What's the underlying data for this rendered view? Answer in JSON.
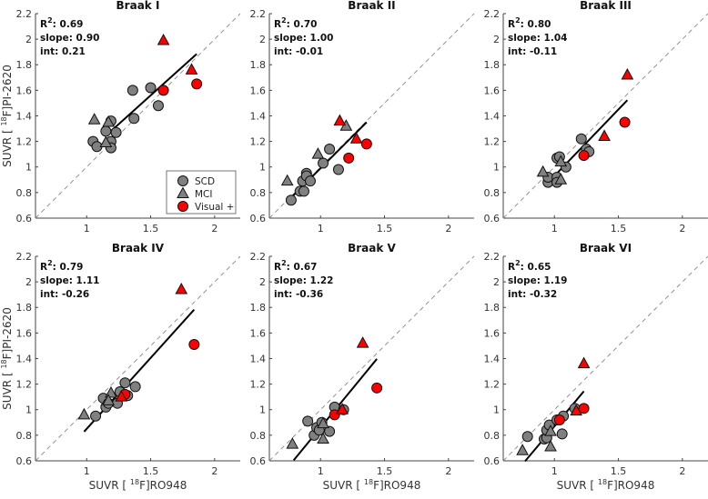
{
  "chart_data": [
    {
      "type": "scatter",
      "title": "Braak I",
      "stats": {
        "r2_label": "R",
        "r2_sup": "2",
        "r2_value": ": 0.69",
        "slope": "slope: 0.90",
        "int": "int: 0.21"
      },
      "fit": {
        "slope": 0.9,
        "intercept": 0.21,
        "x_range": [
          1.15,
          1.86
        ]
      },
      "series": [
        {
          "name": "SCD",
          "points": [
            [
              1.05,
              1.2
            ],
            [
              1.08,
              1.16
            ],
            [
              1.15,
              1.28
            ],
            [
              1.19,
              1.36
            ],
            [
              1.19,
              1.2
            ],
            [
              1.19,
              1.15
            ],
            [
              1.23,
              1.27
            ],
            [
              1.36,
              1.6
            ],
            [
              1.37,
              1.38
            ],
            [
              1.5,
              1.62
            ],
            [
              1.56,
              1.48
            ]
          ]
        },
        {
          "name": "MCI",
          "points": [
            [
              1.06,
              1.37
            ],
            [
              1.17,
              1.35
            ],
            [
              1.15,
              1.19
            ]
          ]
        },
        {
          "name": "Visual + (SCD)",
          "points": [
            [
              1.6,
              1.6
            ],
            [
              1.86,
              1.65
            ]
          ]
        },
        {
          "name": "Visual + (MCI)",
          "points": [
            [
              1.6,
              1.99
            ],
            [
              1.82,
              1.76
            ]
          ]
        }
      ]
    },
    {
      "type": "scatter",
      "title": "Braak II",
      "stats": {
        "r2_label": "R",
        "r2_sup": "2",
        "r2_value": ": 0.70",
        "slope": "slope: 1.00",
        "int": "int: -0.01"
      },
      "fit": {
        "slope": 1.0,
        "intercept": -0.01,
        "x_range": [
          0.76,
          1.36
        ]
      },
      "series": [
        {
          "name": "SCD",
          "points": [
            [
              0.77,
              0.74
            ],
            [
              0.84,
              0.81
            ],
            [
              0.86,
              0.89
            ],
            [
              0.87,
              0.81
            ],
            [
              0.89,
              0.95
            ],
            [
              0.89,
              0.93
            ],
            [
              0.92,
              0.89
            ],
            [
              1.02,
              1.03
            ],
            [
              1.07,
              1.14
            ],
            [
              1.14,
              0.98
            ]
          ]
        },
        {
          "name": "MCI",
          "points": [
            [
              0.74,
              0.89
            ],
            [
              0.98,
              1.1
            ],
            [
              1.2,
              1.32
            ]
          ]
        },
        {
          "name": "Visual + (SCD)",
          "points": [
            [
              1.22,
              1.07
            ],
            [
              1.36,
              1.18
            ]
          ]
        },
        {
          "name": "Visual + (MCI)",
          "points": [
            [
              1.15,
              1.36
            ],
            [
              1.28,
              1.22
            ]
          ]
        }
      ]
    },
    {
      "type": "scatter",
      "title": "Braak III",
      "stats": {
        "r2_label": "R",
        "r2_sup": "2",
        "r2_value": ": 0.80",
        "slope": "slope: 1.04",
        "int": "int: -0.11"
      },
      "fit": {
        "slope": 1.04,
        "intercept": -0.11,
        "x_range": [
          0.93,
          1.57
        ]
      },
      "series": [
        {
          "name": "SCD",
          "points": [
            [
              0.95,
              0.88
            ],
            [
              0.95,
              0.92
            ],
            [
              1.02,
              0.92
            ],
            [
              1.02,
              0.88
            ],
            [
              1.02,
              1.07
            ],
            [
              1.04,
              1.08
            ],
            [
              1.09,
              1.0
            ],
            [
              1.21,
              1.22
            ],
            [
              1.25,
              1.14
            ],
            [
              1.27,
              1.12
            ]
          ]
        },
        {
          "name": "MCI",
          "points": [
            [
              0.91,
              0.96
            ],
            [
              1.05,
              0.9
            ],
            [
              1.05,
              1.04
            ]
          ]
        },
        {
          "name": "Visual + (SCD)",
          "points": [
            [
              1.23,
              1.09
            ],
            [
              1.55,
              1.35
            ]
          ]
        },
        {
          "name": "Visual + (MCI)",
          "points": [
            [
              1.39,
              1.24
            ],
            [
              1.57,
              1.72
            ]
          ]
        }
      ]
    },
    {
      "type": "scatter",
      "title": "Braak IV",
      "stats": {
        "r2_label": "R",
        "r2_sup": "2",
        "r2_value": ": 0.79",
        "slope": "slope: 1.11",
        "int": "int: -0.26"
      },
      "fit": {
        "slope": 1.11,
        "intercept": -0.26,
        "x_range": [
          0.98,
          1.84
        ]
      },
      "series": [
        {
          "name": "SCD",
          "points": [
            [
              1.07,
              0.95
            ],
            [
              1.13,
              1.09
            ],
            [
              1.15,
              1.02
            ],
            [
              1.17,
              1.05
            ],
            [
              1.24,
              1.05
            ],
            [
              1.26,
              1.14
            ],
            [
              1.3,
              1.21
            ],
            [
              1.32,
              1.11
            ],
            [
              1.38,
              1.18
            ]
          ]
        },
        {
          "name": "MCI",
          "points": [
            [
              0.98,
              0.96
            ],
            [
              1.19,
              1.13
            ],
            [
              1.17,
              1.07
            ]
          ]
        },
        {
          "name": "Visual + (SCD)",
          "points": [
            [
              1.3,
              1.12
            ],
            [
              1.84,
              1.51
            ]
          ]
        },
        {
          "name": "Visual + (MCI)",
          "points": [
            [
              1.27,
              1.1
            ],
            [
              1.74,
              1.94
            ]
          ]
        }
      ]
    },
    {
      "type": "scatter",
      "title": "Braak V",
      "stats": {
        "r2_label": "R",
        "r2_sup": "2",
        "r2_value": ": 0.67",
        "slope": "slope: 1.22",
        "int": "int: -0.36"
      },
      "fit": {
        "slope": 1.22,
        "intercept": -0.36,
        "x_range": [
          0.79,
          1.44
        ]
      },
      "series": [
        {
          "name": "SCD",
          "points": [
            [
              0.9,
              0.91
            ],
            [
              0.95,
              0.8
            ],
            [
              0.97,
              0.86
            ],
            [
              0.99,
              0.84
            ],
            [
              1.01,
              0.9
            ],
            [
              1.07,
              0.83
            ],
            [
              1.11,
              1.02
            ],
            [
              1.18,
              1.0
            ]
          ]
        },
        {
          "name": "MCI",
          "points": [
            [
              0.78,
              0.73
            ],
            [
              1.02,
              0.77
            ],
            [
              1.02,
              0.89
            ]
          ]
        },
        {
          "name": "Visual + (SCD)",
          "points": [
            [
              1.11,
              0.96
            ],
            [
              1.44,
              1.17
            ]
          ]
        },
        {
          "name": "Visual + (MCI)",
          "points": [
            [
              1.17,
              1.0
            ],
            [
              1.33,
              1.52
            ]
          ]
        }
      ]
    },
    {
      "type": "scatter",
      "title": "Braak VI",
      "stats": {
        "r2_label": "R",
        "r2_sup": "2",
        "r2_value": ": 0.65",
        "slope": "slope: 1.19",
        "int": "int: -0.32"
      },
      "fit": {
        "slope": 1.19,
        "intercept": -0.32,
        "x_range": [
          0.77,
          1.23
        ]
      },
      "series": [
        {
          "name": "SCD",
          "points": [
            [
              0.79,
              0.79
            ],
            [
              0.92,
              0.77
            ],
            [
              0.94,
              0.78
            ],
            [
              0.94,
              0.84
            ],
            [
              0.96,
              0.88
            ],
            [
              1.02,
              0.92
            ],
            [
              1.07,
              0.95
            ],
            [
              1.06,
              0.81
            ],
            [
              1.16,
              1.01
            ]
          ]
        },
        {
          "name": "MCI",
          "points": [
            [
              0.75,
              0.68
            ],
            [
              0.97,
              0.71
            ],
            [
              0.97,
              0.83
            ]
          ]
        },
        {
          "name": "Visual + (SCD)",
          "points": [
            [
              1.04,
              0.92
            ],
            [
              1.23,
              1.01
            ]
          ]
        },
        {
          "name": "Visual + (MCI)",
          "points": [
            [
              1.17,
              0.99
            ],
            [
              1.23,
              1.36
            ]
          ]
        }
      ]
    }
  ],
  "axes": {
    "xlim": [
      0.6,
      2.2
    ],
    "ylim": [
      0.6,
      2.2
    ],
    "xticks": [
      "1",
      "1.5",
      "2"
    ],
    "xtick_values": [
      1,
      1.5,
      2
    ],
    "yticks": [
      "0.6",
      "0.8",
      "1",
      "1.2",
      "1.4",
      "1.6",
      "1.8",
      "2",
      "2.2"
    ],
    "ytick_values": [
      0.6,
      0.8,
      1,
      1.2,
      1.4,
      1.6,
      1.8,
      2,
      2.2
    ],
    "xlabel_prefix": "SUVR [ ",
    "xlabel_sup": "18",
    "xlabel_suffix": "F]RO948",
    "ylabel_prefix": "SUVR [ ",
    "ylabel_sup": "18",
    "ylabel_suffix": "F]PI-2620",
    "identity_line": "y = x (dashed)"
  },
  "legend": {
    "placement": "lower-right of Braak I",
    "items": [
      "SCD",
      "MCI",
      "Visual +"
    ]
  },
  "colors": {
    "scd": "#808080",
    "visual_pos": "#ff0000",
    "fit": "#000000",
    "identity": "#888888"
  }
}
